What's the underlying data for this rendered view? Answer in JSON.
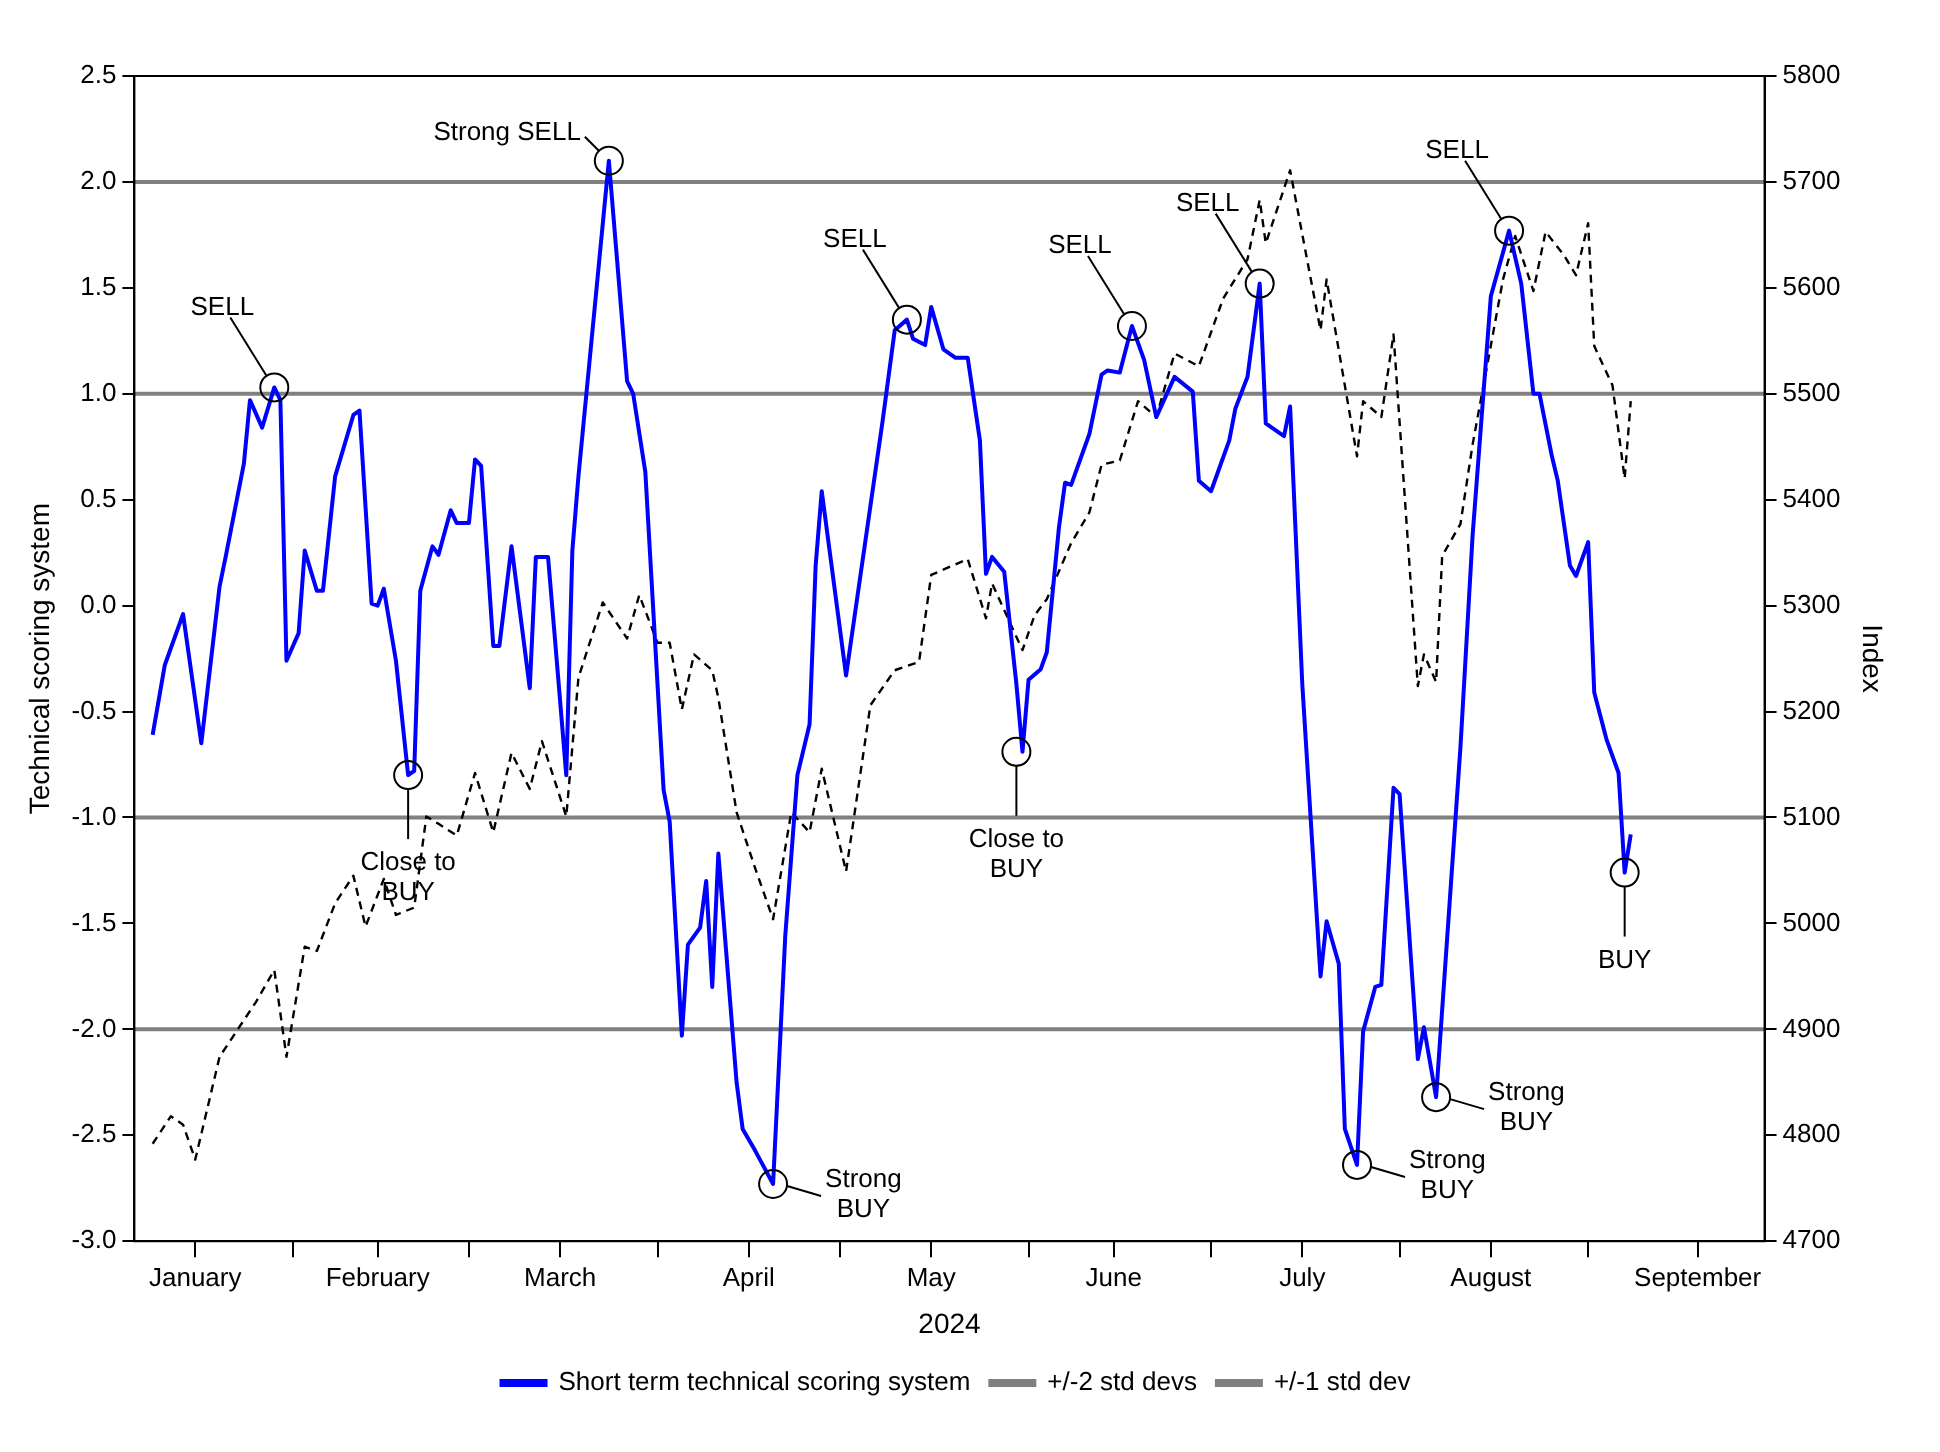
{
  "chart_data": {
    "type": "line",
    "xlabel": "2024",
    "ylabel": "Technical scoring system",
    "y2label": "Index",
    "xlim": [
      "2024-01-06",
      "2024-09-30"
    ],
    "xticks": [
      {
        "value": "2024-01-16",
        "label": "January"
      },
      {
        "value": "2024-02-01",
        "label": null
      },
      {
        "value": "2024-02-15",
        "label": "February"
      },
      {
        "value": "2024-03-01",
        "label": null
      },
      {
        "value": "2024-03-16",
        "label": "March"
      },
      {
        "value": "2024-04-01",
        "label": null
      },
      {
        "value": "2024-04-16",
        "label": "April"
      },
      {
        "value": "2024-05-01",
        "label": null
      },
      {
        "value": "2024-05-16",
        "label": "May"
      },
      {
        "value": "2024-06-01",
        "label": null
      },
      {
        "value": "2024-06-15",
        "label": "June"
      },
      {
        "value": "2024-07-01",
        "label": null
      },
      {
        "value": "2024-07-16",
        "label": "July"
      },
      {
        "value": "2024-08-01",
        "label": null
      },
      {
        "value": "2024-08-16",
        "label": "August"
      },
      {
        "value": "2024-09-01",
        "label": null
      },
      {
        "value": "2024-09-19",
        "label": "September"
      }
    ],
    "ylim": [
      -3,
      2.5
    ],
    "yticks": [
      {
        "value": -3,
        "label": "-3.0"
      },
      {
        "value": -2.5,
        "label": "-2.5"
      },
      {
        "value": -2,
        "label": "-2.0"
      },
      {
        "value": -1.5,
        "label": "-1.5"
      },
      {
        "value": -1,
        "label": "-1.0"
      },
      {
        "value": -0.5,
        "label": "-0.5"
      },
      {
        "value": 0,
        "label": "0.0"
      },
      {
        "value": 0.5,
        "label": "0.5"
      },
      {
        "value": 1,
        "label": "1.0"
      },
      {
        "value": 1.5,
        "label": "1.5"
      },
      {
        "value": 2,
        "label": "2.0"
      },
      {
        "value": 2.5,
        "label": "2.5"
      }
    ],
    "y2lim": [
      4700,
      5800
    ],
    "y2ticks": [
      4700,
      4800,
      4900,
      5000,
      5100,
      5200,
      5300,
      5400,
      5500,
      5600,
      5700,
      5800
    ],
    "grid": false,
    "legend": "bottom",
    "ref_lines": [
      {
        "axis": "y",
        "value": 2,
        "label": "+/-2 std devs",
        "color": "#808080"
      },
      {
        "axis": "y",
        "value": -2,
        "color": "#808080"
      },
      {
        "axis": "y",
        "value": 1,
        "label": "+/-1 std dev",
        "color": "#808080"
      },
      {
        "axis": "y",
        "value": -1,
        "color": "#808080"
      }
    ],
    "series": [
      {
        "axis": "y2",
        "color": "#000000",
        "line_style": "dashed",
        "x": [
          "2024-01-09",
          "2024-01-12",
          "2024-01-14",
          "2024-01-16",
          "2024-01-20",
          "2024-01-23",
          "2024-01-26",
          "2024-01-29",
          "2024-01-31",
          "2024-02-03",
          "2024-02-05",
          "2024-02-08",
          "2024-02-11",
          "2024-02-13",
          "2024-02-16",
          "2024-02-18",
          "2024-02-21",
          "2024-02-23",
          "2024-02-25",
          "2024-02-28",
          "2024-03-02",
          "2024-03-05",
          "2024-03-08",
          "2024-03-11",
          "2024-03-13",
          "2024-03-17",
          "2024-03-19",
          "2024-03-23",
          "2024-03-27",
          "2024-03-29",
          "2024-04-01",
          "2024-04-03",
          "2024-04-05",
          "2024-04-07",
          "2024-04-10",
          "2024-04-11",
          "2024-04-14",
          "2024-04-17",
          "2024-04-20",
          "2024-04-23",
          "2024-04-26",
          "2024-04-28",
          "2024-05-02",
          "2024-05-06",
          "2024-05-10",
          "2024-05-14",
          "2024-05-16",
          "2024-05-22",
          "2024-05-25",
          "2024-05-26",
          "2024-05-31",
          "2024-06-02",
          "2024-06-04",
          "2024-06-08",
          "2024-06-11",
          "2024-06-13",
          "2024-06-16",
          "2024-06-19",
          "2024-06-22",
          "2024-06-25",
          "2024-06-29",
          "2024-07-03",
          "2024-07-07",
          "2024-07-09",
          "2024-07-10",
          "2024-07-14",
          "2024-07-19",
          "2024-07-20",
          "2024-07-25",
          "2024-07-26",
          "2024-07-29",
          "2024-07-31",
          "2024-08-04",
          "2024-08-05",
          "2024-08-07",
          "2024-08-08",
          "2024-08-11",
          "2024-08-13",
          "2024-08-18",
          "2024-08-20",
          "2024-08-23",
          "2024-08-25",
          "2024-08-28",
          "2024-08-30",
          "2024-09-01",
          "2024-09-02",
          "2024-09-05",
          "2024-09-07",
          "2024-09-08"
        ],
        "values": [
          4792,
          4818,
          4810,
          4777,
          4874,
          4900,
          4926,
          4956,
          4874,
          4978,
          4974,
          5019,
          5045,
          4997,
          5042,
          5008,
          5015,
          5101,
          5094,
          5083,
          5142,
          5086,
          5161,
          5127,
          5172,
          5101,
          5232,
          5303,
          5269,
          5310,
          5265,
          5265,
          5202,
          5254,
          5239,
          5213,
          5105,
          5053,
          5004,
          5105,
          5086,
          5146,
          5049,
          5206,
          5239,
          5247,
          5329,
          5344,
          5288,
          5321,
          5258,
          5291,
          5306,
          5359,
          5388,
          5433,
          5437,
          5493,
          5478,
          5538,
          5526,
          5590,
          5627,
          5683,
          5642,
          5711,
          5560,
          5608,
          5441,
          5493,
          5478,
          5556,
          5224,
          5254,
          5228,
          5347,
          5377,
          5452,
          5608,
          5649,
          5597,
          5653,
          5631,
          5612,
          5661,
          5545,
          5508,
          5420,
          5493
        ]
      },
      {
        "name": "Short term technical scoring system",
        "color": "#0000ff",
        "x": [
          "2024-01-09",
          "2024-01-11",
          "2024-01-14",
          "2024-01-17",
          "2024-01-20",
          "2024-01-21",
          "2024-01-24",
          "2024-01-25",
          "2024-01-27",
          "2024-01-29",
          "2024-01-30",
          "2024-01-31",
          "2024-02-02",
          "2024-02-03",
          "2024-02-05",
          "2024-02-06",
          "2024-02-08",
          "2024-02-11",
          "2024-02-12",
          "2024-02-14",
          "2024-02-15",
          "2024-02-16",
          "2024-02-18",
          "2024-02-20",
          "2024-02-21",
          "2024-02-22",
          "2024-02-24",
          "2024-02-25",
          "2024-02-27",
          "2024-02-28",
          "2024-03-01",
          "2024-03-02",
          "2024-03-03",
          "2024-03-05",
          "2024-03-06",
          "2024-03-08",
          "2024-03-11",
          "2024-03-12",
          "2024-03-14",
          "2024-03-15",
          "2024-03-17",
          "2024-03-18",
          "2024-03-19",
          "2024-03-24",
          "2024-03-27",
          "2024-03-28",
          "2024-03-30",
          "2024-04-02",
          "2024-04-03",
          "2024-04-05",
          "2024-04-06",
          "2024-04-08",
          "2024-04-09",
          "2024-04-10",
          "2024-04-11",
          "2024-04-14",
          "2024-04-15",
          "2024-04-17",
          "2024-04-20",
          "2024-04-22",
          "2024-04-24",
          "2024-04-26",
          "2024-04-27",
          "2024-04-28",
          "2024-05-02",
          "2024-05-08",
          "2024-05-10",
          "2024-05-12",
          "2024-05-13",
          "2024-05-15",
          "2024-05-16",
          "2024-05-18",
          "2024-05-20",
          "2024-05-22",
          "2024-05-24",
          "2024-05-25",
          "2024-05-26",
          "2024-05-28",
          "2024-05-30",
          "2024-05-31",
          "2024-06-01",
          "2024-06-03",
          "2024-06-04",
          "2024-06-06",
          "2024-06-07",
          "2024-06-08",
          "2024-06-11",
          "2024-06-13",
          "2024-06-14",
          "2024-06-16",
          "2024-06-18",
          "2024-06-20",
          "2024-06-22",
          "2024-06-25",
          "2024-06-28",
          "2024-06-29",
          "2024-07-01",
          "2024-07-04",
          "2024-07-05",
          "2024-07-07",
          "2024-07-09",
          "2024-07-10",
          "2024-07-13",
          "2024-07-14",
          "2024-07-16",
          "2024-07-19",
          "2024-07-20",
          "2024-07-22",
          "2024-07-23",
          "2024-07-25",
          "2024-07-26",
          "2024-07-28",
          "2024-07-29",
          "2024-07-31",
          "2024-08-01",
          "2024-08-04",
          "2024-08-05",
          "2024-08-07",
          "2024-08-11",
          "2024-08-13",
          "2024-08-16",
          "2024-08-19",
          "2024-08-21",
          "2024-08-23",
          "2024-08-24",
          "2024-08-26",
          "2024-08-27",
          "2024-08-29",
          "2024-08-30",
          "2024-09-01",
          "2024-09-02",
          "2024-09-04",
          "2024-09-06",
          "2024-09-07",
          "2024-09-08"
        ],
        "values": [
          -0.61,
          -0.28,
          -0.04,
          -0.65,
          0.09,
          0.23,
          0.67,
          0.97,
          0.84,
          1.03,
          0.97,
          -0.26,
          -0.13,
          0.26,
          0.07,
          0.07,
          0.61,
          0.9,
          0.92,
          0.01,
          0,
          0.08,
          -0.26,
          -0.8,
          -0.78,
          0.07,
          0.28,
          0.24,
          0.45,
          0.39,
          0.39,
          0.69,
          0.66,
          -0.19,
          -0.19,
          0.28,
          -0.39,
          0.23,
          0.23,
          -0.11,
          -0.8,
          0.26,
          0.61,
          2.1,
          1.06,
          1,
          0.63,
          -0.87,
          -1.02,
          -2.03,
          -1.6,
          -1.52,
          -1.3,
          -1.8,
          -1.17,
          -2.25,
          -2.47,
          -2.57,
          -2.73,
          -1.56,
          -0.8,
          -0.56,
          0.19,
          0.54,
          -0.33,
          0.87,
          1.3,
          1.35,
          1.26,
          1.23,
          1.41,
          1.21,
          1.17,
          1.17,
          0.78,
          0.15,
          0.23,
          0.16,
          -0.37,
          -0.69,
          -0.35,
          -0.3,
          -0.22,
          0.37,
          0.58,
          0.57,
          0.81,
          1.09,
          1.11,
          1.1,
          1.32,
          1.16,
          0.89,
          1.08,
          1.01,
          0.59,
          0.54,
          0.78,
          0.93,
          1.08,
          1.52,
          0.86,
          0.8,
          0.94,
          -0.37,
          -1.75,
          -1.49,
          -1.69,
          -2.47,
          -2.64,
          -2.01,
          -1.8,
          -1.79,
          -0.86,
          -0.89,
          -2.14,
          -1.99,
          -2.32,
          -0.67,
          0.33,
          1.46,
          1.77,
          1.52,
          1,
          1,
          0.71,
          0.59,
          0.19,
          0.14,
          0.3,
          -0.41,
          -0.63,
          -0.79,
          -1.26,
          -1.08
        ]
      }
    ],
    "annotations": [
      {
        "text": "SELL",
        "x": "2024-01-29",
        "y": 1.03
      },
      {
        "text": "Close to\nBUY",
        "x": "2024-02-20",
        "y": -0.8
      },
      {
        "text": "Strong SELL",
        "x": "2024-03-24",
        "y": 2.1
      },
      {
        "text": "Strong\nBUY",
        "x": "2024-04-20",
        "y": -2.73
      },
      {
        "text": "SELL",
        "x": "2024-05-12",
        "y": 1.35
      },
      {
        "text": "Close to\nBUY",
        "x": "2024-05-30",
        "y": -0.69
      },
      {
        "text": "SELL",
        "x": "2024-06-18",
        "y": 1.32
      },
      {
        "text": "SELL",
        "x": "2024-07-09",
        "y": 1.52
      },
      {
        "text": "Strong\nBUY",
        "x": "2024-07-25",
        "y": -2.64
      },
      {
        "text": "Strong\nBUY",
        "x": "2024-08-07",
        "y": -2.32
      },
      {
        "text": "SELL",
        "x": "2024-08-19",
        "y": 1.77
      },
      {
        "text": "BUY",
        "x": "2024-09-07",
        "y": -1.26
      }
    ]
  }
}
